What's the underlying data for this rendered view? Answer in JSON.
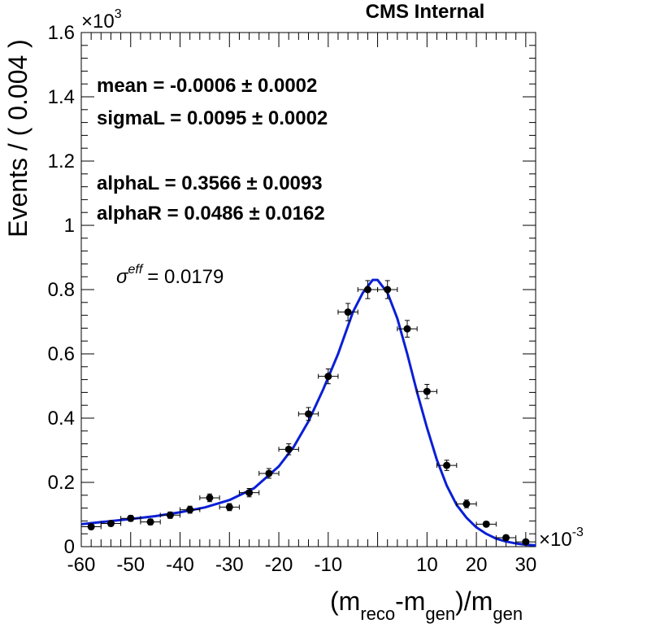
{
  "header": {
    "label": "CMS Internal"
  },
  "fit_params": {
    "mean": "mean = -0.0006 ± 0.0002",
    "sigmaL": "sigmaL = 0.0095 ± 0.0002",
    "alphaL": "alphaL = 0.3566 ± 0.0093",
    "alphaR": "alphaR = 0.0486 ± 0.0162"
  },
  "sigma_eff": {
    "symbol": "σ",
    "superscript": "eff",
    "value": "= 0.0179"
  },
  "chart_data": {
    "type": "scatter",
    "title": "",
    "xlabel": "(m_reco-m_gen)/m_gen",
    "ylabel": "Events / ( 0.004 )",
    "x_multiplier": "×10",
    "x_multiplier_exp": "-3",
    "y_multiplier": "×10",
    "y_multiplier_exp": "3",
    "xlim": [
      -60,
      32
    ],
    "ylim": [
      0,
      1.6
    ],
    "x_ticks": [
      -60,
      -50,
      -40,
      -30,
      -20,
      -10,
      10,
      20,
      30
    ],
    "y_ticks": [
      0,
      0.2,
      0.4,
      0.6,
      0.8,
      1,
      1.2,
      1.4,
      1.6
    ],
    "x_tick_labels": [
      "-60",
      "-50",
      "-40",
      "-30",
      "-20",
      "-10",
      "10",
      "20",
      "30"
    ],
    "y_tick_labels": [
      "0",
      "0.2",
      "0.4",
      "0.6",
      "0.8",
      "1",
      "1.2",
      "1.4",
      "1.6"
    ],
    "series": [
      {
        "kind": "data_points",
        "bin_half_width": 2,
        "x": [
          -58,
          -54,
          -50,
          -46,
          -42,
          -38,
          -34,
          -30,
          -26,
          -22,
          -18,
          -14,
          -10,
          -6,
          -2,
          2,
          6,
          10,
          14,
          18,
          22,
          26,
          30
        ],
        "y": [
          0.062,
          0.072,
          0.088,
          0.077,
          0.098,
          0.115,
          0.152,
          0.123,
          0.168,
          0.228,
          0.303,
          0.413,
          0.53,
          0.73,
          0.8,
          0.8,
          0.678,
          0.483,
          0.253,
          0.133,
          0.07,
          0.028,
          0.015
        ],
        "y_err": [
          0.008,
          0.008,
          0.009,
          0.009,
          0.01,
          0.011,
          0.012,
          0.011,
          0.013,
          0.015,
          0.017,
          0.02,
          0.023,
          0.027,
          0.028,
          0.028,
          0.026,
          0.022,
          0.016,
          0.012,
          0.008,
          0.005,
          0.004
        ],
        "color": "#000000"
      },
      {
        "kind": "fit_curve",
        "x": [
          -60,
          -55,
          -50,
          -45,
          -40,
          -35,
          -30,
          -25,
          -20,
          -17,
          -14,
          -11,
          -8,
          -5,
          -3,
          -1,
          0,
          2,
          4,
          6,
          8,
          10,
          12,
          14,
          16,
          18,
          20,
          22,
          24,
          26,
          28,
          30,
          32
        ],
        "y": [
          0.07,
          0.078,
          0.086,
          0.095,
          0.107,
          0.122,
          0.145,
          0.182,
          0.25,
          0.31,
          0.39,
          0.49,
          0.6,
          0.73,
          0.79,
          0.83,
          0.83,
          0.79,
          0.71,
          0.6,
          0.48,
          0.37,
          0.27,
          0.19,
          0.13,
          0.09,
          0.06,
          0.04,
          0.025,
          0.016,
          0.01,
          0.006,
          0.004
        ],
        "color": "#0a1fd6"
      }
    ]
  }
}
